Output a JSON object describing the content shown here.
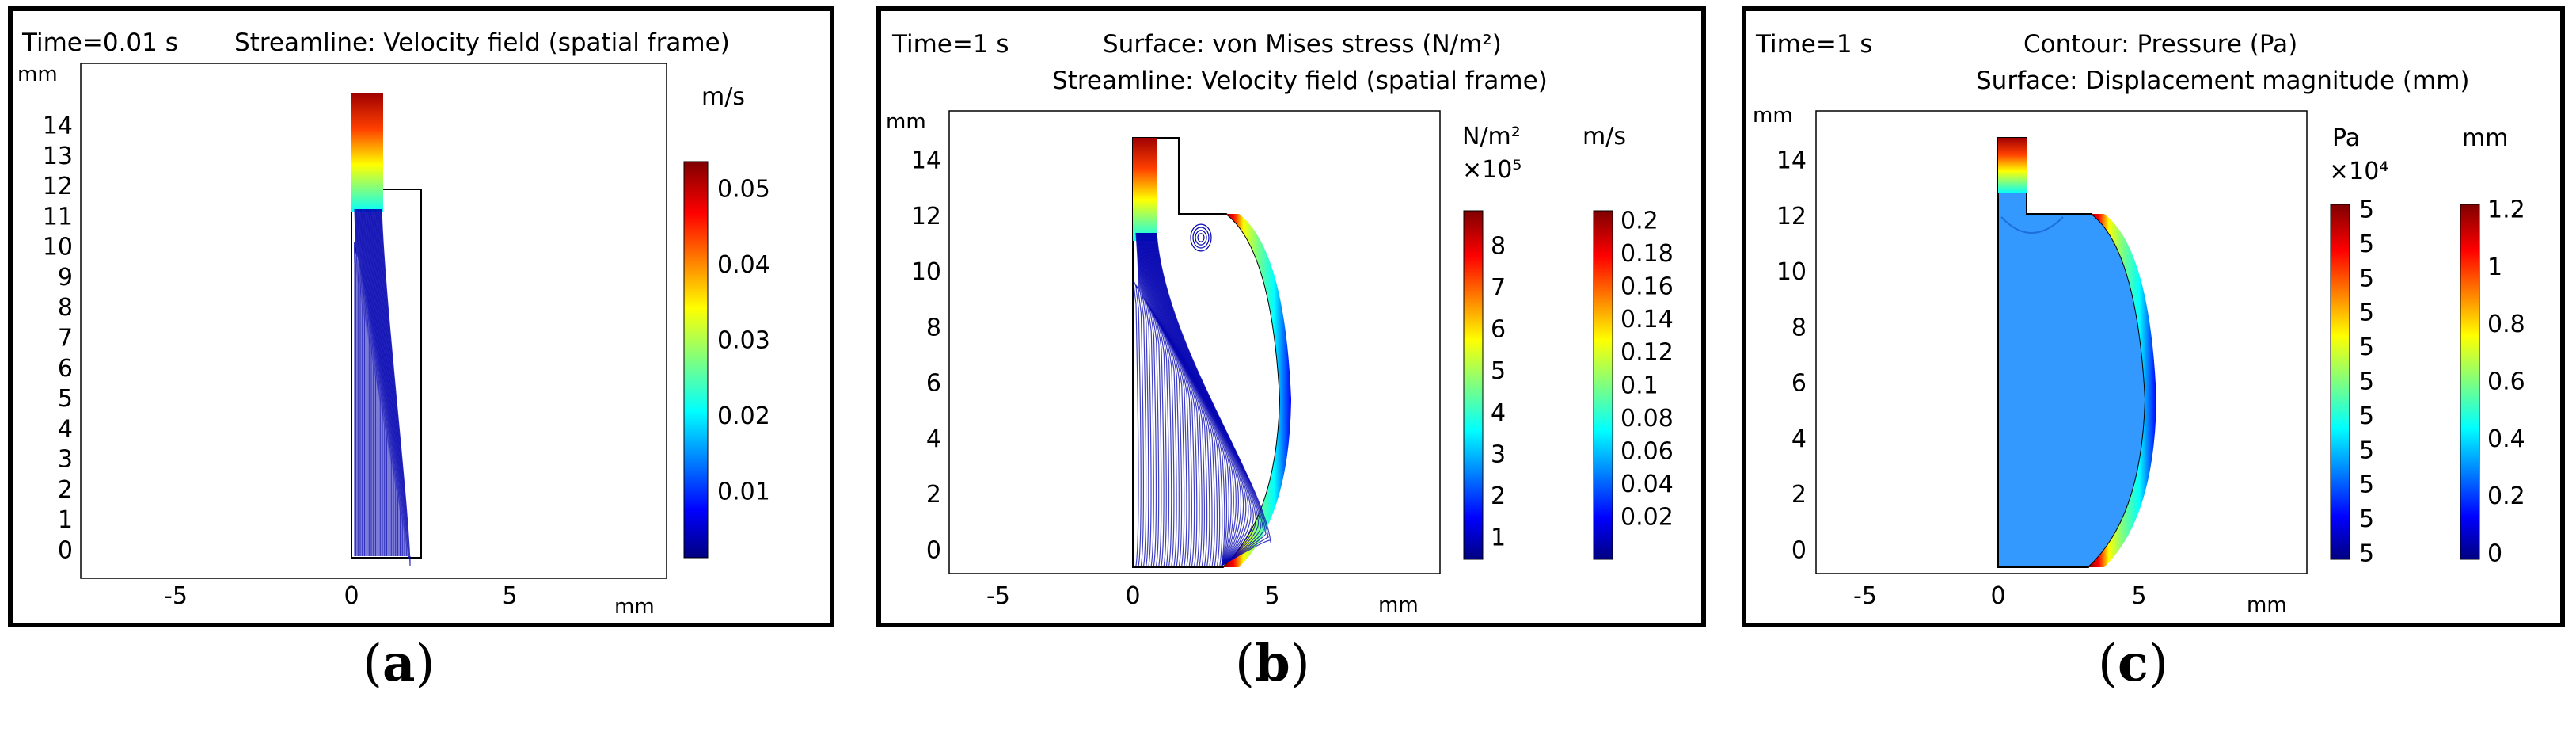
{
  "panels": [
    {
      "id": "a",
      "time_label": "Time=0.01 s",
      "title_lines": [
        "Streamline: Velocity field (spatial frame)"
      ],
      "unit_x": "mm",
      "unit_y": "mm",
      "y_ticks": [
        "0",
        "1",
        "2",
        "3",
        "4",
        "5",
        "6",
        "7",
        "8",
        "9",
        "10",
        "11",
        "12",
        "13",
        "14"
      ],
      "x_ticks": [
        "-5",
        "0",
        "5"
      ],
      "colorbars": [
        {
          "unit": "m/s",
          "exponent": "",
          "ticks": [
            "0.05",
            "0.04",
            "0.03",
            "0.02",
            "0.01"
          ]
        }
      ],
      "caption": "a"
    },
    {
      "id": "b",
      "time_label": "Time=1 s",
      "title_lines": [
        "Surface: von Mises stress (N/m²)",
        "Streamline: Velocity field (spatial frame)"
      ],
      "unit_x": "mm",
      "unit_y": "mm",
      "y_ticks": [
        "0",
        "2",
        "4",
        "6",
        "8",
        "10",
        "12",
        "14"
      ],
      "x_ticks": [
        "-5",
        "0",
        "5"
      ],
      "colorbars": [
        {
          "unit": "N/m²",
          "exponent": "×10⁵",
          "ticks": [
            "8",
            "7",
            "6",
            "5",
            "4",
            "3",
            "2",
            "1"
          ]
        },
        {
          "unit": "m/s",
          "exponent": "",
          "ticks": [
            "0.2",
            "0.18",
            "0.16",
            "0.14",
            "0.12",
            "0.1",
            "0.08",
            "0.06",
            "0.04",
            "0.02"
          ]
        }
      ],
      "caption": "b"
    },
    {
      "id": "c",
      "time_label": "Time=1 s",
      "title_lines": [
        "Contour: Pressure (Pa)",
        "Surface: Displacement magnitude (mm)"
      ],
      "unit_x": "mm",
      "unit_y": "mm",
      "y_ticks": [
        "0",
        "2",
        "4",
        "6",
        "8",
        "10",
        "12",
        "14"
      ],
      "x_ticks": [
        "-5",
        "0",
        "5"
      ],
      "colorbars": [
        {
          "unit": "Pa",
          "exponent": "×10⁴",
          "ticks": [
            "5",
            "5",
            "5",
            "5",
            "5",
            "5",
            "5",
            "5",
            "5",
            "5",
            "5"
          ]
        },
        {
          "unit": "mm",
          "exponent": "",
          "ticks": [
            "1.2",
            "1",
            "0.8",
            "0.6",
            "0.4",
            "0.2",
            "0"
          ]
        }
      ],
      "caption": "c"
    }
  ],
  "colors": {
    "jet_top": "#7f0000",
    "jet_bottom": "#00007f",
    "fill_c": "#3399ff",
    "line_blue": "#00008b"
  }
}
